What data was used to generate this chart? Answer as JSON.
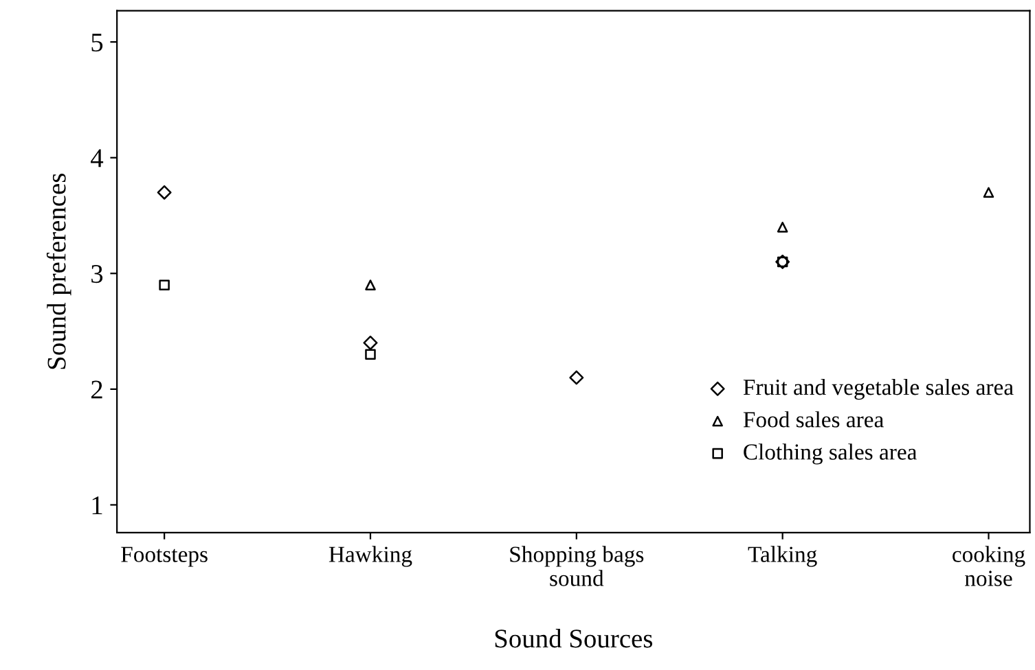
{
  "chart_data": {
    "type": "scatter",
    "xlabel": "Sound Sources",
    "ylabel": "Sound preferences",
    "categories": [
      "Footsteps",
      "Hawking",
      "Shopping bags\nsound",
      "Talking",
      "cooking\nnoise"
    ],
    "series": [
      {
        "name": "Fruit and vegetable sales area",
        "color": "#000000",
        "marker": "diamond",
        "values": [
          3.7,
          2.4,
          2.1,
          3.1,
          null
        ]
      },
      {
        "name": "Food sales area",
        "color": "#000000",
        "marker": "triangle",
        "values": [
          null,
          2.9,
          null,
          3.4,
          3.7
        ]
      },
      {
        "name": "Clothing sales area",
        "color": "#000000",
        "marker": "square",
        "values": [
          2.9,
          2.3,
          null,
          3.1,
          null
        ]
      }
    ],
    "ylim": [
      0.76,
      5.27
    ],
    "yticks": [
      1,
      2,
      3,
      4,
      5
    ],
    "grid": false,
    "legend": "bottom right"
  }
}
